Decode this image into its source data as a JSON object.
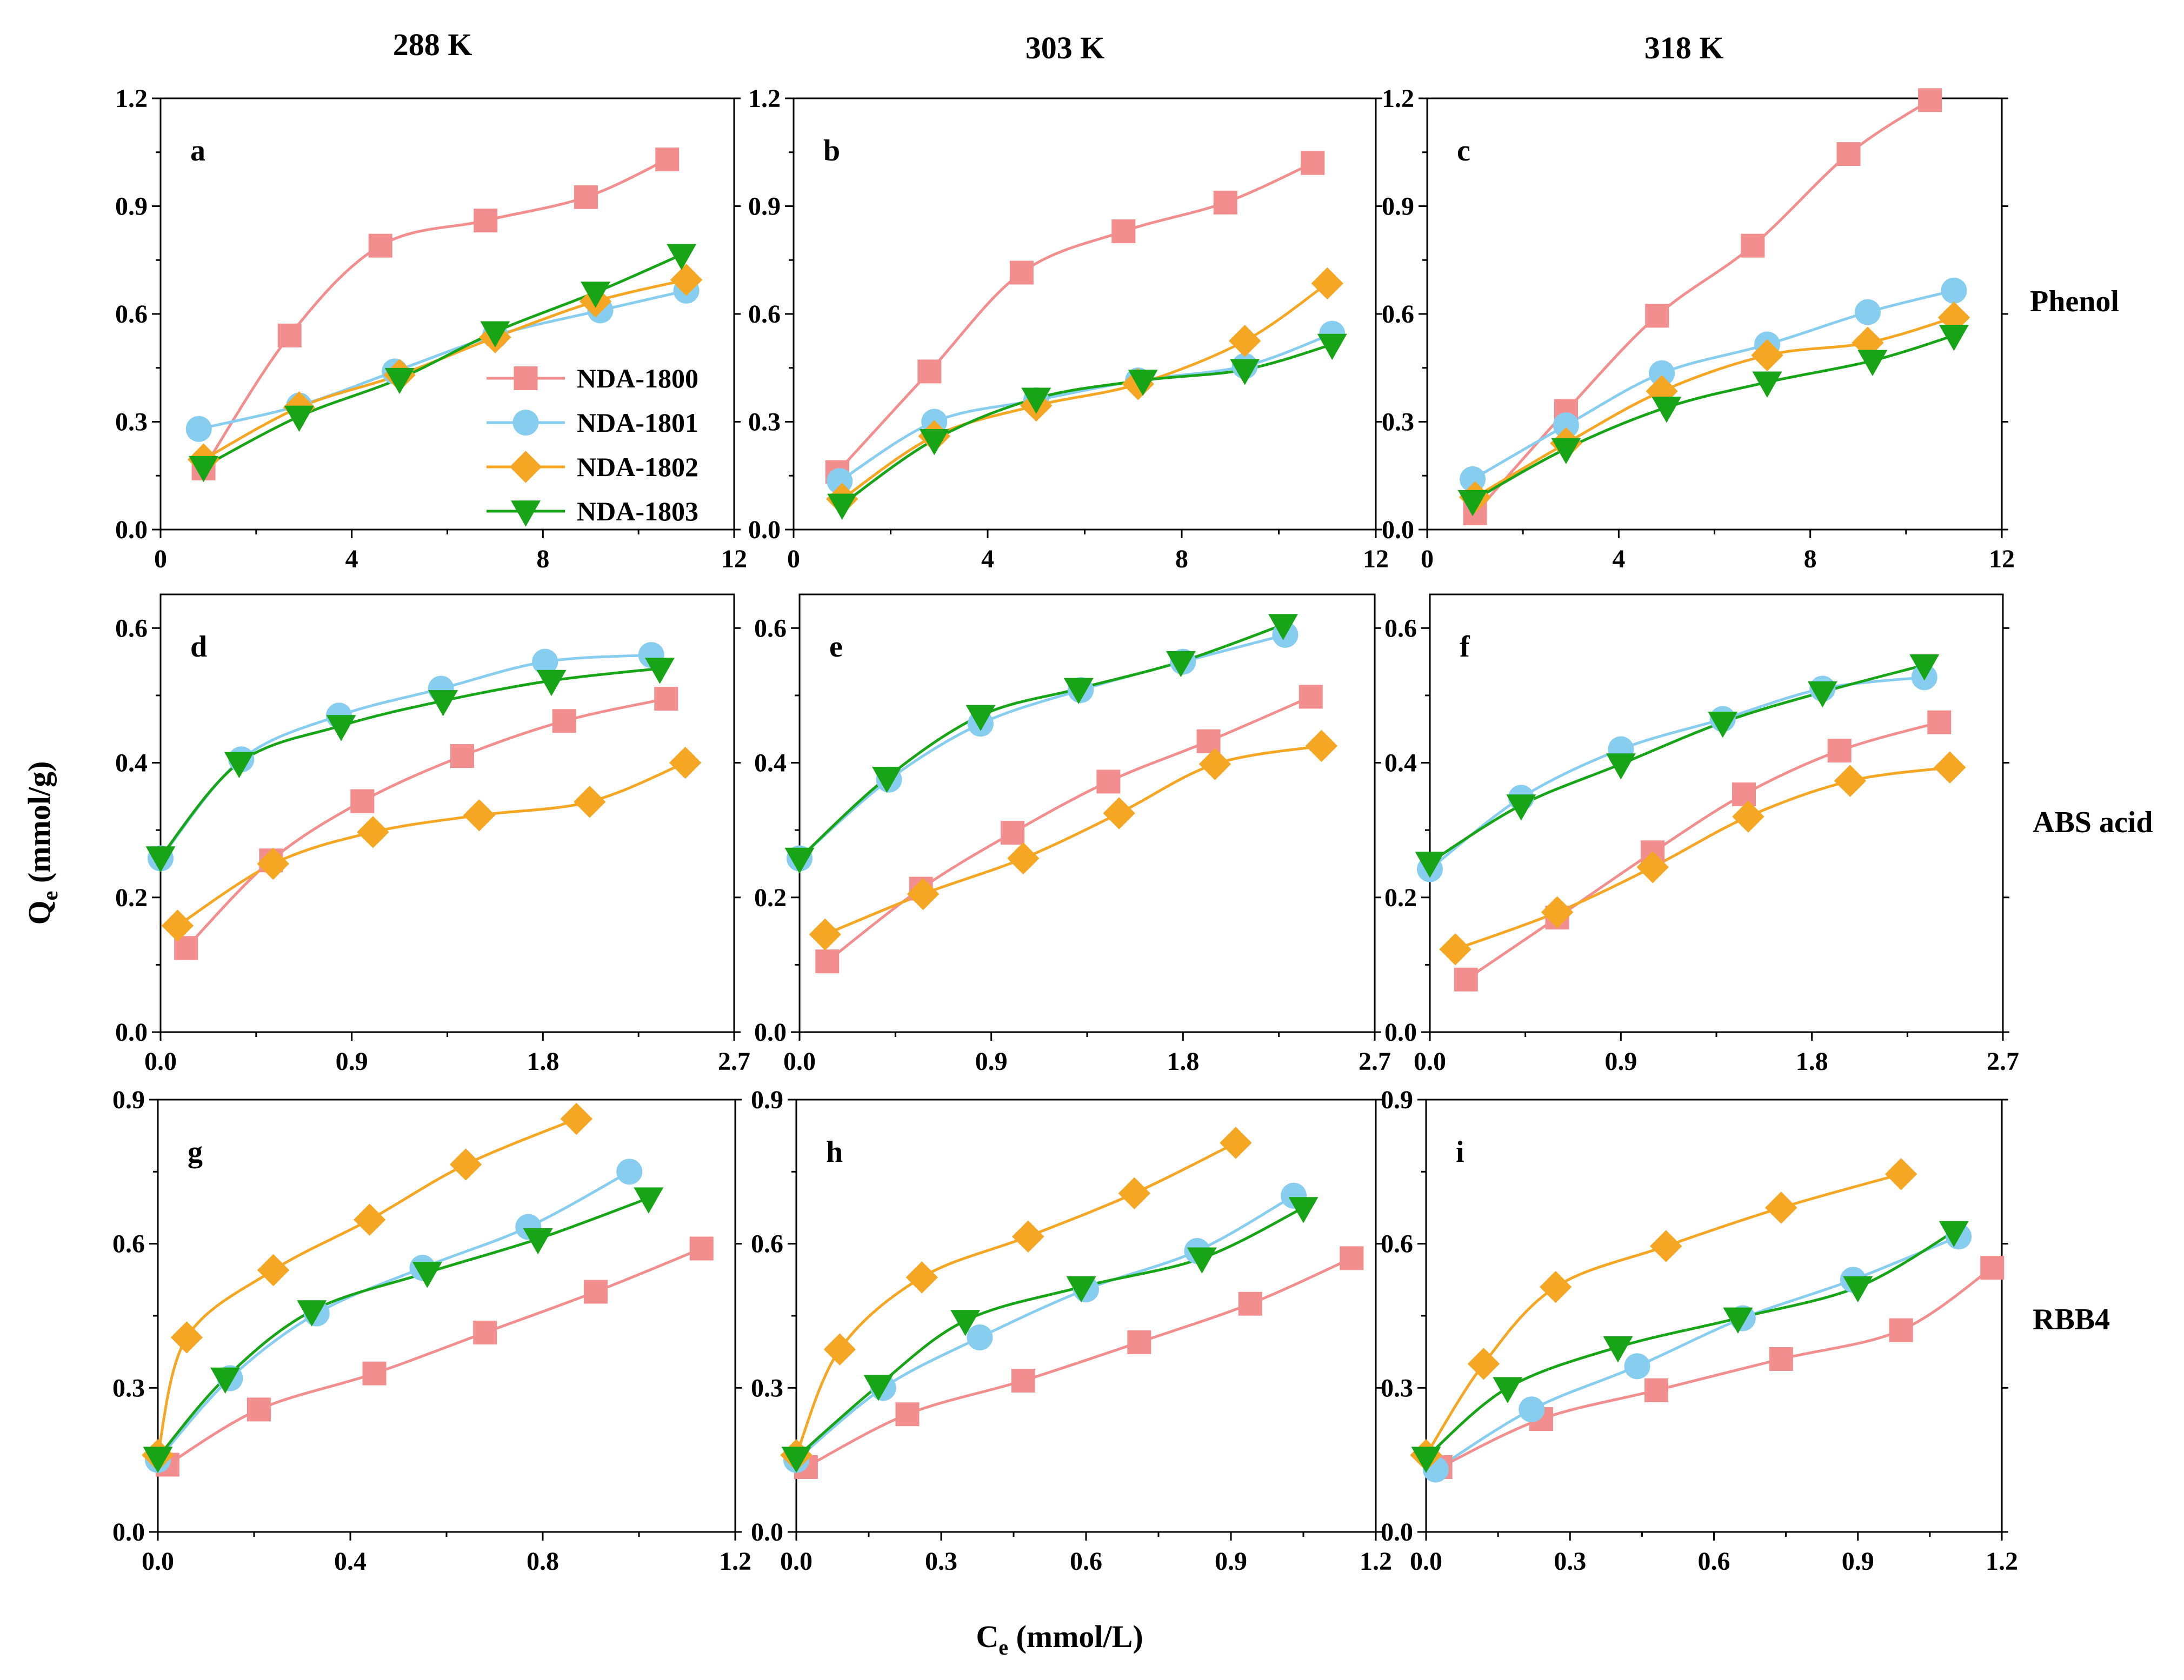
{
  "figure": {
    "col_titles": [
      "288 K",
      "303 K",
      "318 K"
    ],
    "row_labels": [
      "Phenol",
      "ABS acid",
      "RBB4"
    ],
    "ylabel_main": "Q",
    "ylabel_sub": "e",
    "ylabel_unit": " (mmol/g)",
    "xlabel_main": "C",
    "xlabel_sub": "e",
    "xlabel_unit": " (mmol/L)"
  },
  "legend": [
    {
      "name": "NDA-1800",
      "color": "#f28e8e",
      "marker": "square"
    },
    {
      "name": "NDA-1801",
      "color": "#87cdf0",
      "marker": "circle"
    },
    {
      "name": "NDA-1802",
      "color": "#f5a623",
      "marker": "diamond"
    },
    {
      "name": "NDA-1803",
      "color": "#17a517",
      "marker": "triangle-down"
    }
  ],
  "chart_data": [
    {
      "id": "a",
      "type": "line",
      "title": "a",
      "row": "Phenol",
      "temperature": "288 K",
      "xlim": [
        0,
        12
      ],
      "ylim": [
        0,
        1.2
      ],
      "xticks": [
        "0",
        "4",
        "8",
        "12"
      ],
      "yticks": [
        "0.0",
        "0.3",
        "0.6",
        "0.9",
        "1.2"
      ],
      "series": [
        {
          "name": "NDA-1800",
          "x": [
            0.9,
            2.7,
            4.6,
            6.8,
            8.9,
            10.6
          ],
          "y": [
            0.17,
            0.54,
            0.79,
            0.86,
            0.925,
            1.03
          ]
        },
        {
          "name": "NDA-1801",
          "x": [
            0.8,
            2.9,
            4.9,
            7.0,
            9.2,
            11.0
          ],
          "y": [
            0.28,
            0.345,
            0.44,
            0.54,
            0.61,
            0.665
          ]
        },
        {
          "name": "NDA-1802",
          "x": [
            0.9,
            2.9,
            5.0,
            7.0,
            9.1,
            11.0
          ],
          "y": [
            0.195,
            0.34,
            0.43,
            0.535,
            0.635,
            0.695
          ]
        },
        {
          "name": "NDA-1803",
          "x": [
            0.9,
            2.9,
            5.0,
            7.0,
            9.1,
            10.9
          ],
          "y": [
            0.175,
            0.315,
            0.42,
            0.55,
            0.66,
            0.765
          ]
        }
      ]
    },
    {
      "id": "b",
      "type": "line",
      "title": "b",
      "row": "Phenol",
      "temperature": "303 K",
      "xlim": [
        0,
        12
      ],
      "ylim": [
        0,
        1.2
      ],
      "xticks": [
        "0",
        "4",
        "8",
        "12"
      ],
      "yticks": [
        "0.0",
        "0.3",
        "0.6",
        "0.9",
        "1.2"
      ],
      "series": [
        {
          "name": "NDA-1800",
          "x": [
            0.9,
            2.8,
            4.7,
            6.8,
            8.9,
            10.7
          ],
          "y": [
            0.16,
            0.44,
            0.715,
            0.83,
            0.91,
            1.02
          ]
        },
        {
          "name": "NDA-1801",
          "x": [
            0.95,
            2.9,
            5.0,
            7.1,
            9.3,
            11.1
          ],
          "y": [
            0.135,
            0.3,
            0.36,
            0.415,
            0.455,
            0.545
          ]
        },
        {
          "name": "NDA-1802",
          "x": [
            1.0,
            2.9,
            5.0,
            7.1,
            9.3,
            11.0
          ],
          "y": [
            0.085,
            0.26,
            0.345,
            0.405,
            0.525,
            0.685
          ]
        },
        {
          "name": "NDA-1803",
          "x": [
            1.0,
            2.9,
            5.0,
            7.2,
            9.3,
            11.1
          ],
          "y": [
            0.07,
            0.25,
            0.365,
            0.415,
            0.445,
            0.515
          ]
        }
      ]
    },
    {
      "id": "c",
      "type": "line",
      "title": "c",
      "row": "Phenol",
      "temperature": "318 K",
      "xlim": [
        0,
        12
      ],
      "ylim": [
        0,
        1.2
      ],
      "xticks": [
        "0",
        "4",
        "8",
        "12"
      ],
      "yticks": [
        "0.0",
        "0.3",
        "0.6",
        "0.9",
        "1.2"
      ],
      "series": [
        {
          "name": "NDA-1800",
          "x": [
            1.0,
            2.9,
            4.8,
            6.8,
            8.8,
            10.5
          ],
          "y": [
            0.045,
            0.33,
            0.595,
            0.79,
            1.045,
            1.195
          ]
        },
        {
          "name": "NDA-1801",
          "x": [
            0.95,
            2.9,
            4.9,
            7.1,
            9.2,
            11.0
          ],
          "y": [
            0.14,
            0.29,
            0.435,
            0.515,
            0.605,
            0.665
          ]
        },
        {
          "name": "NDA-1802",
          "x": [
            1.0,
            2.9,
            4.9,
            7.1,
            9.2,
            11.0
          ],
          "y": [
            0.09,
            0.24,
            0.385,
            0.485,
            0.52,
            0.59
          ]
        },
        {
          "name": "NDA-1803",
          "x": [
            0.95,
            2.9,
            5.0,
            7.1,
            9.3,
            11.0
          ],
          "y": [
            0.08,
            0.225,
            0.34,
            0.41,
            0.47,
            0.54
          ]
        }
      ]
    },
    {
      "id": "d",
      "type": "line",
      "title": "d",
      "row": "ABS acid",
      "temperature": "288 K",
      "xlim": [
        0,
        2.7
      ],
      "ylim": [
        0,
        0.65
      ],
      "xticks": [
        "0.0",
        "0.9",
        "1.8",
        "2.7"
      ],
      "yticks": [
        "0.0",
        "0.2",
        "0.4",
        "0.6"
      ],
      "series": [
        {
          "name": "NDA-1800",
          "x": [
            0.12,
            0.52,
            0.95,
            1.42,
            1.9,
            2.38
          ],
          "y": [
            0.125,
            0.255,
            0.343,
            0.41,
            0.462,
            0.495
          ]
        },
        {
          "name": "NDA-1801",
          "x": [
            0.0,
            0.38,
            0.84,
            1.32,
            1.81,
            2.31
          ],
          "y": [
            0.258,
            0.405,
            0.47,
            0.51,
            0.55,
            0.56
          ]
        },
        {
          "name": "NDA-1802",
          "x": [
            0.08,
            0.53,
            1.0,
            1.5,
            2.02,
            2.47
          ],
          "y": [
            0.158,
            0.25,
            0.297,
            0.322,
            0.342,
            0.4
          ]
        },
        {
          "name": "NDA-1803",
          "x": [
            0.0,
            0.37,
            0.85,
            1.33,
            1.84,
            2.35
          ],
          "y": [
            0.26,
            0.4,
            0.455,
            0.492,
            0.522,
            0.54
          ]
        }
      ]
    },
    {
      "id": "e",
      "type": "line",
      "title": "e",
      "row": "ABS acid",
      "temperature": "303 K",
      "xlim": [
        0,
        2.7
      ],
      "ylim": [
        0,
        0.65
      ],
      "xticks": [
        "0.0",
        "0.9",
        "1.8",
        "2.7"
      ],
      "yticks": [
        "0.0",
        "0.2",
        "0.4",
        "0.6"
      ],
      "series": [
        {
          "name": "NDA-1800",
          "x": [
            0.13,
            0.57,
            1.0,
            1.45,
            1.92,
            2.4
          ],
          "y": [
            0.105,
            0.213,
            0.296,
            0.372,
            0.432,
            0.498
          ]
        },
        {
          "name": "NDA-1801",
          "x": [
            0.0,
            0.42,
            0.85,
            1.32,
            1.8,
            2.28
          ],
          "y": [
            0.258,
            0.375,
            0.458,
            0.508,
            0.55,
            0.59
          ]
        },
        {
          "name": "NDA-1802",
          "x": [
            0.12,
            0.58,
            1.05,
            1.5,
            1.95,
            2.45
          ],
          "y": [
            0.145,
            0.205,
            0.258,
            0.325,
            0.398,
            0.425
          ]
        },
        {
          "name": "NDA-1803",
          "x": [
            0.0,
            0.41,
            0.85,
            1.31,
            1.79,
            2.27
          ],
          "y": [
            0.258,
            0.378,
            0.47,
            0.51,
            0.55,
            0.605
          ]
        }
      ]
    },
    {
      "id": "f",
      "type": "line",
      "title": "f",
      "row": "ABS acid",
      "temperature": "318 K",
      "xlim": [
        0,
        2.7
      ],
      "ylim": [
        0,
        0.65
      ],
      "xticks": [
        "0.0",
        "0.9",
        "1.8",
        "2.7"
      ],
      "yticks": [
        "0.0",
        "0.2",
        "0.4",
        "0.6"
      ],
      "series": [
        {
          "name": "NDA-1800",
          "x": [
            0.17,
            0.6,
            1.05,
            1.48,
            1.93,
            2.4
          ],
          "y": [
            0.078,
            0.17,
            0.267,
            0.353,
            0.418,
            0.46
          ]
        },
        {
          "name": "NDA-1801",
          "x": [
            0.0,
            0.43,
            0.9,
            1.38,
            1.85,
            2.33
          ],
          "y": [
            0.242,
            0.348,
            0.42,
            0.465,
            0.51,
            0.527
          ]
        },
        {
          "name": "NDA-1802",
          "x": [
            0.12,
            0.6,
            1.05,
            1.5,
            1.98,
            2.45
          ],
          "y": [
            0.123,
            0.178,
            0.245,
            0.32,
            0.373,
            0.393
          ]
        },
        {
          "name": "NDA-1803",
          "x": [
            0.0,
            0.43,
            0.9,
            1.38,
            1.85,
            2.33
          ],
          "y": [
            0.252,
            0.337,
            0.398,
            0.46,
            0.505,
            0.545
          ]
        }
      ]
    },
    {
      "id": "g",
      "type": "line",
      "title": "g",
      "row": "RBB4",
      "temperature": "288 K",
      "xlim": [
        0,
        1.2
      ],
      "ylim": [
        0,
        0.9
      ],
      "xticks": [
        "0.0",
        "0.4",
        "0.8",
        "1.2"
      ],
      "yticks": [
        "0.0",
        "0.3",
        "0.6",
        "0.9"
      ],
      "series": [
        {
          "name": "NDA-1800",
          "x": [
            0.02,
            0.21,
            0.45,
            0.68,
            0.91,
            1.13
          ],
          "y": [
            0.14,
            0.255,
            0.33,
            0.415,
            0.5,
            0.59
          ]
        },
        {
          "name": "NDA-1801",
          "x": [
            0.0,
            0.15,
            0.33,
            0.55,
            0.77,
            0.98
          ],
          "y": [
            0.15,
            0.32,
            0.455,
            0.55,
            0.635,
            0.75
          ]
        },
        {
          "name": "NDA-1802",
          "x": [
            0.0,
            0.06,
            0.24,
            0.44,
            0.64,
            0.87
          ],
          "y": [
            0.16,
            0.405,
            0.545,
            0.65,
            0.765,
            0.86
          ]
        },
        {
          "name": "NDA-1803",
          "x": [
            0.0,
            0.14,
            0.32,
            0.56,
            0.79,
            1.02
          ],
          "y": [
            0.155,
            0.32,
            0.46,
            0.54,
            0.61,
            0.695
          ]
        }
      ]
    },
    {
      "id": "h",
      "type": "line",
      "title": "h",
      "row": "RBB4",
      "temperature": "303 K",
      "xlim": [
        0,
        1.2
      ],
      "ylim": [
        0,
        0.9
      ],
      "xticks": [
        "0.0",
        "0.3",
        "0.6",
        "0.9",
        "1.2"
      ],
      "yticks": [
        "0.0",
        "0.3",
        "0.6",
        "0.9"
      ],
      "series": [
        {
          "name": "NDA-1800",
          "x": [
            0.02,
            0.23,
            0.47,
            0.71,
            0.94,
            1.15
          ],
          "y": [
            0.135,
            0.245,
            0.315,
            0.395,
            0.475,
            0.57
          ]
        },
        {
          "name": "NDA-1801",
          "x": [
            0.0,
            0.18,
            0.38,
            0.6,
            0.83,
            1.03
          ],
          "y": [
            0.15,
            0.3,
            0.405,
            0.505,
            0.585,
            0.7
          ]
        },
        {
          "name": "NDA-1802",
          "x": [
            0.0,
            0.09,
            0.26,
            0.48,
            0.7,
            0.91
          ],
          "y": [
            0.16,
            0.38,
            0.53,
            0.615,
            0.705,
            0.81
          ]
        },
        {
          "name": "NDA-1803",
          "x": [
            0.0,
            0.17,
            0.35,
            0.59,
            0.84,
            1.05
          ],
          "y": [
            0.155,
            0.305,
            0.44,
            0.51,
            0.57,
            0.675
          ]
        }
      ]
    },
    {
      "id": "i",
      "type": "line",
      "title": "i",
      "row": "RBB4",
      "temperature": "318 K",
      "xlim": [
        0,
        1.2
      ],
      "ylim": [
        0,
        0.9
      ],
      "xticks": [
        "0.0",
        "0.3",
        "0.6",
        "0.9",
        "1.2"
      ],
      "yticks": [
        "0.0",
        "0.3",
        "0.6",
        "0.9"
      ],
      "series": [
        {
          "name": "NDA-1800",
          "x": [
            0.03,
            0.24,
            0.48,
            0.74,
            0.99,
            1.18
          ],
          "y": [
            0.135,
            0.235,
            0.295,
            0.36,
            0.42,
            0.55
          ]
        },
        {
          "name": "NDA-1801",
          "x": [
            0.02,
            0.22,
            0.44,
            0.66,
            0.89,
            1.11
          ],
          "y": [
            0.13,
            0.255,
            0.345,
            0.445,
            0.525,
            0.615
          ]
        },
        {
          "name": "NDA-1802",
          "x": [
            0.0,
            0.12,
            0.27,
            0.5,
            0.74,
            0.99
          ],
          "y": [
            0.16,
            0.35,
            0.51,
            0.595,
            0.675,
            0.745
          ]
        },
        {
          "name": "NDA-1803",
          "x": [
            0.0,
            0.17,
            0.4,
            0.65,
            0.9,
            1.1
          ],
          "y": [
            0.155,
            0.3,
            0.385,
            0.445,
            0.51,
            0.625
          ]
        }
      ]
    }
  ]
}
